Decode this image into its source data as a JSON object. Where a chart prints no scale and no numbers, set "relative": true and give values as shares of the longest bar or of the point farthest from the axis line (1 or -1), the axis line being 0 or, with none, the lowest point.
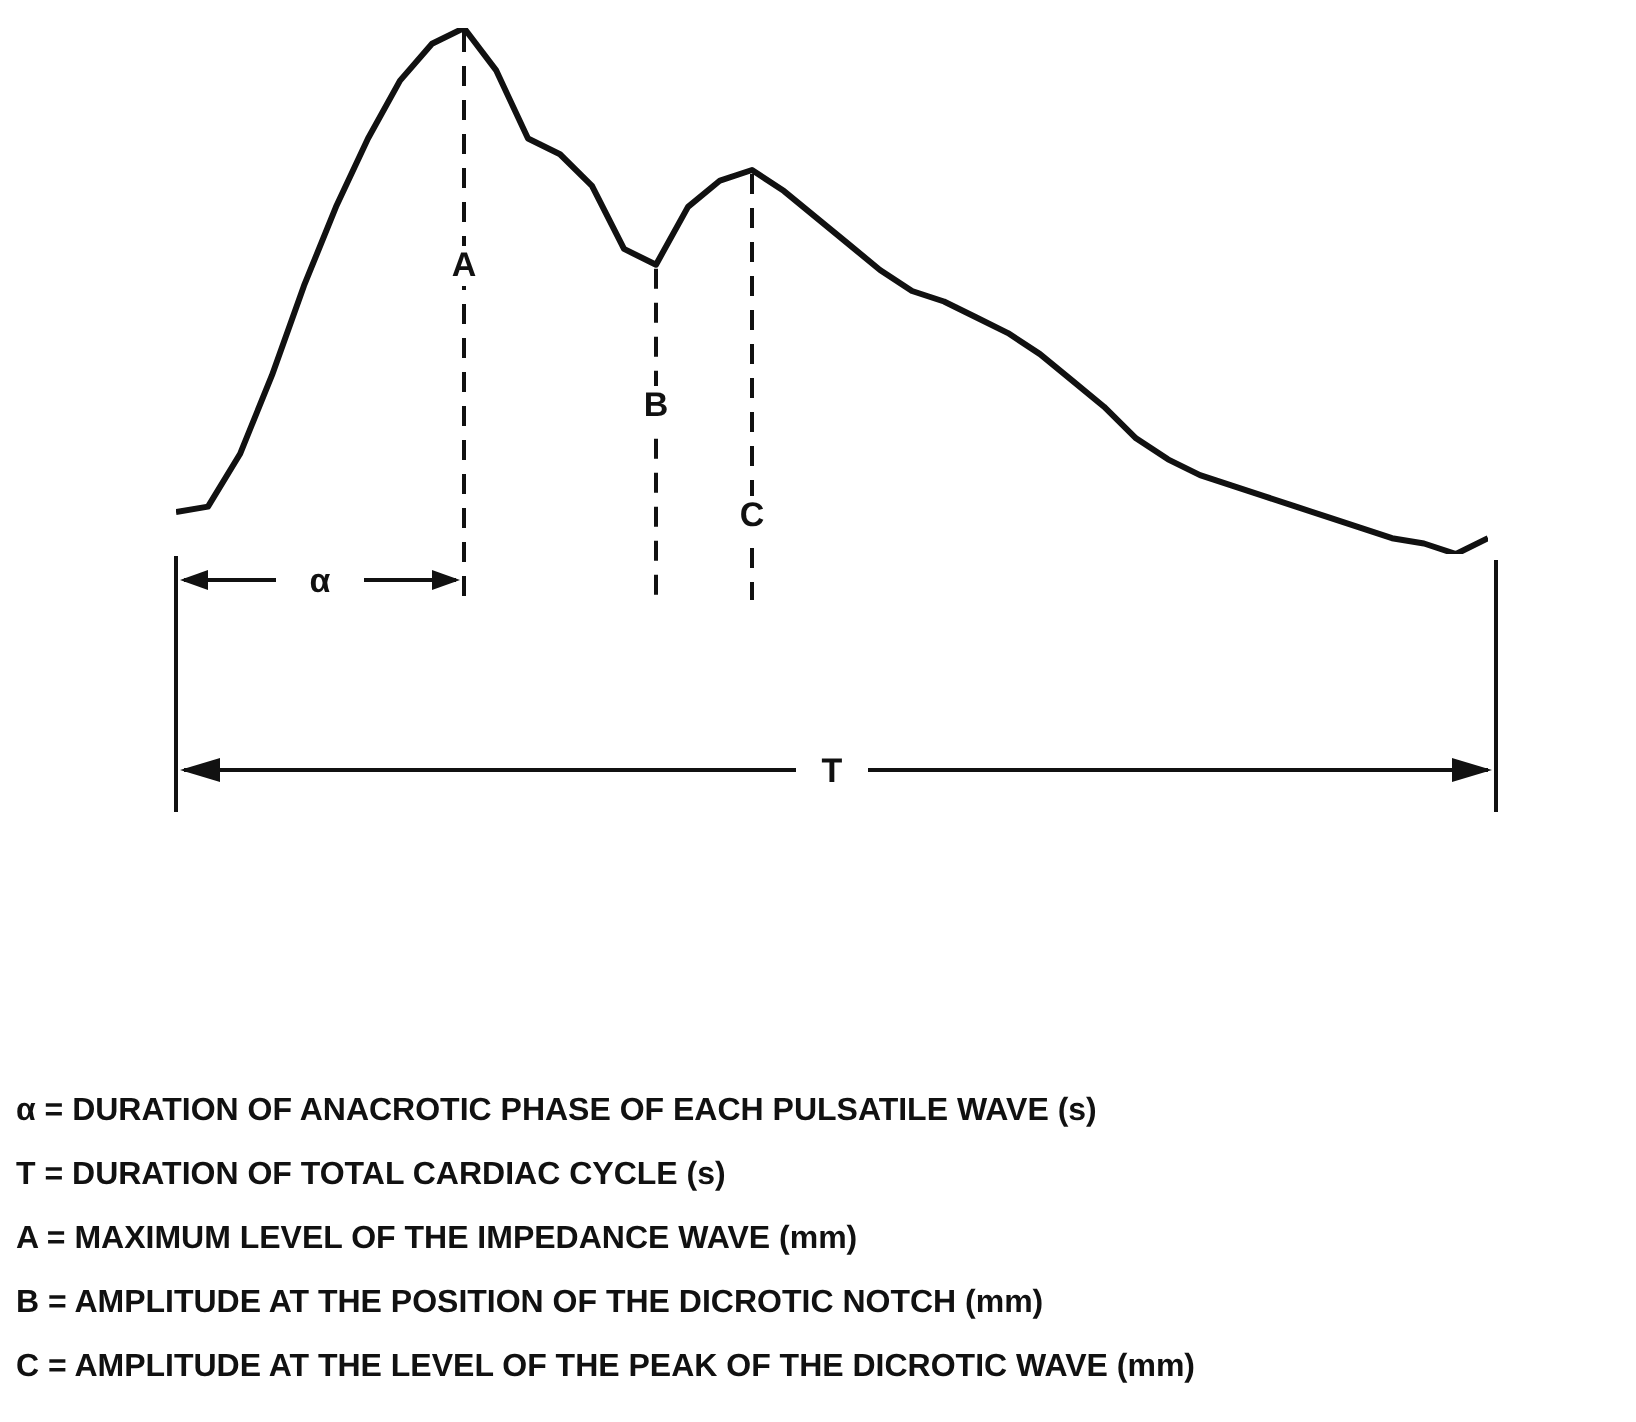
{
  "chart_data": {
    "type": "line",
    "relative": true,
    "categories": [
      null,
      null,
      null,
      null,
      null,
      null,
      null,
      null,
      null,
      null,
      null,
      null,
      null,
      null,
      null,
      null,
      null,
      null,
      null,
      null,
      null,
      null,
      null,
      null,
      null,
      null,
      null,
      null,
      null,
      null,
      null,
      null,
      null,
      null,
      null,
      null,
      null,
      null,
      null,
      null,
      null,
      null
    ],
    "series": [
      {
        "color": "#111111",
        "values": [
          0.08,
          0.09,
          0.19,
          0.34,
          0.51,
          0.66,
          0.79,
          0.9,
          0.97,
          1,
          0.92,
          0.79,
          0.76,
          0.7,
          0.58,
          0.55,
          0.66,
          0.71,
          0.73,
          0.69,
          0.64,
          0.59,
          0.54,
          0.5,
          0.48,
          0.45,
          0.42,
          0.38,
          0.33,
          0.28,
          0.22,
          0.18,
          0.15,
          0.13,
          0.11,
          0.09,
          0.07,
          0.05,
          0.03,
          0.02,
          0,
          0.03
        ]
      }
    ],
    "annotations": [
      "A",
      "B",
      "C",
      "α",
      "T",
      "α = DURATION OF ANACROTIC PHASE OF EACH PULSATILE WAVE (s)",
      "T = DURATION OF TOTAL CARDIAC CYCLE (s)",
      "A = MAXIMUM LEVEL OF THE IMPEDANCE WAVE (mm)",
      "B = AMPLITUDE AT THE POSITION OF THE DICROTIC NOTCH (mm)",
      "C = AMPLITUDE AT THE LEVEL OF THE PEAK OF THE DICROTIC WAVE (mm)"
    ]
  }
}
